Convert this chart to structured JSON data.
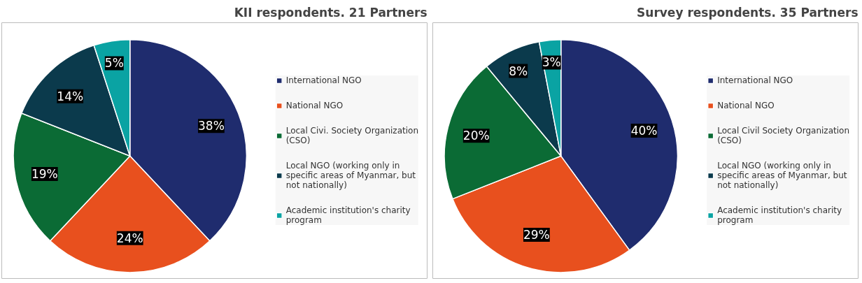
{
  "chart_data": [
    {
      "type": "pie",
      "title": "KII respondents. 21 Partners",
      "categories": [
        "International NGO",
        "National NGO",
        "Local Civi. Society Organization (CSO)",
        "Local NGO (working only in specific areas of Myanmar, but not nationally)",
        "Academic institution's charity program"
      ],
      "values": [
        38,
        24,
        19,
        14,
        5
      ],
      "value_labels": [
        "38%",
        "24%",
        "19%",
        "14%",
        "5%"
      ],
      "colors": [
        "#1f2c6e",
        "#e8501e",
        "#0b6b35",
        "#0b3a4c",
        "#0aa3a3"
      ],
      "legend": "right"
    },
    {
      "type": "pie",
      "title": "Survey respondents. 35 Partners",
      "categories": [
        "International NGO",
        "National NGO",
        "Local Civil Society Organization (CSO)",
        "Local NGO (working only in specific areas of Myanmar, but not nationally)",
        "Academic institution's charity program"
      ],
      "values": [
        40,
        29,
        20,
        8,
        3
      ],
      "value_labels": [
        "40%",
        "29%",
        "20%",
        "8%",
        "3%"
      ],
      "colors": [
        "#1f2c6e",
        "#e8501e",
        "#0b6b35",
        "#0b3a4c",
        "#0aa3a3"
      ],
      "legend": "right"
    }
  ]
}
